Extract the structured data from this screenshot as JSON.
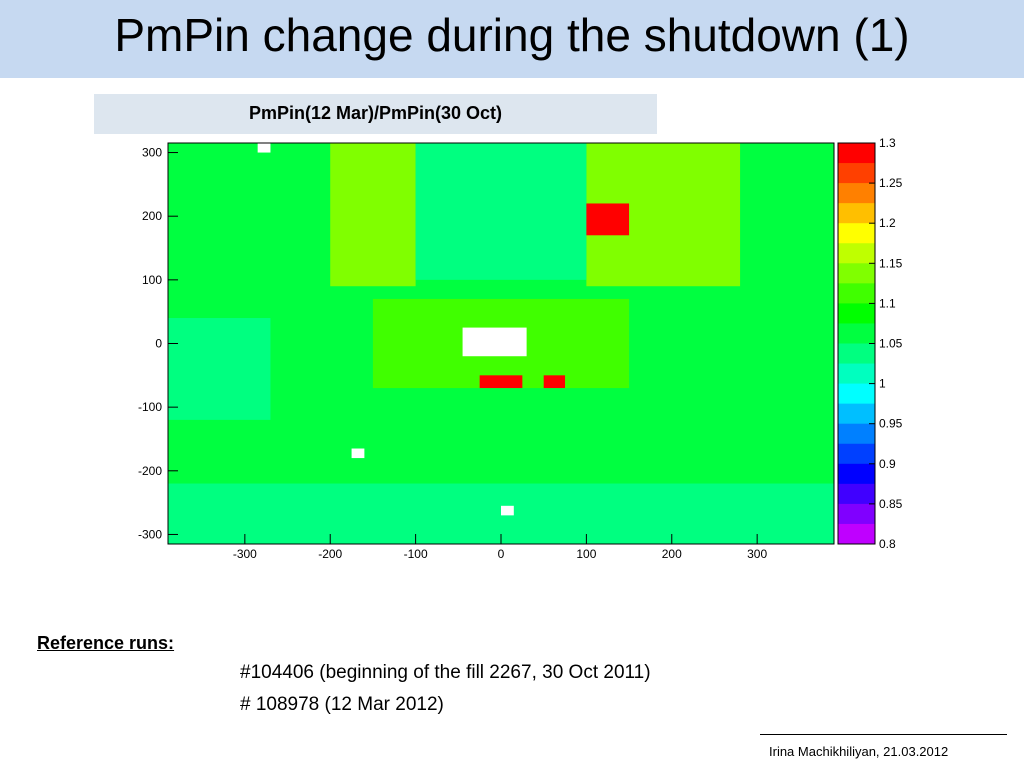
{
  "slide": {
    "title": "PmPin change during the shutdown (1)",
    "author": "Irina Machikhiliyan, 21.03.2012"
  },
  "reference": {
    "title": "Reference runs:",
    "runs": [
      "#104406 (beginning  of the fill 2267, 30 Oct 2011)",
      "# 108978 (12 Mar 2012)"
    ]
  },
  "chart_data": {
    "type": "heatmap",
    "title": "PmPin(12 Mar)/PmPin(30 Oct)",
    "x_ticks": [
      -300,
      -200,
      -100,
      0,
      100,
      200,
      300
    ],
    "y_ticks": [
      300,
      200,
      100,
      0,
      -100,
      -200,
      -300
    ],
    "xlim": [
      -390,
      390
    ],
    "ylim": [
      -315,
      315
    ],
    "zlim": [
      0.8,
      1.3
    ],
    "colorbar_ticks": [
      "1.3",
      "1.25",
      "1.2",
      "1.15",
      "1.1",
      "1.05",
      "1",
      "0.95",
      "0.9",
      "0.85",
      "0.8"
    ],
    "colorbar_colors": [
      "#ff0000",
      "#ff4000",
      "#ff8000",
      "#ffbf00",
      "#ffff00",
      "#bfff00",
      "#80ff00",
      "#40ff00",
      "#00ff00",
      "#00ff40",
      "#00ff80",
      "#00ffbf",
      "#00ffff",
      "#00bfff",
      "#0080ff",
      "#0040ff",
      "#0000ff",
      "#4000ff",
      "#8000ff",
      "#bf00ff"
    ],
    "regions": [
      {
        "x": [
          -390,
          390
        ],
        "y": [
          -315,
          315
        ],
        "value": 1.07
      },
      {
        "x": [
          -390,
          390
        ],
        "y": [
          -315,
          -220
        ],
        "value": 1.03
      },
      {
        "x": [
          -390,
          -270
        ],
        "y": [
          -120,
          40
        ],
        "value": 1.05
      },
      {
        "x": [
          -200,
          -100
        ],
        "y": [
          90,
          315
        ],
        "value": 1.15
      },
      {
        "x": [
          100,
          280
        ],
        "y": [
          90,
          315
        ],
        "value": 1.14
      },
      {
        "x": [
          -100,
          100
        ],
        "y": [
          100,
          315
        ],
        "value": 1.04
      },
      {
        "x": [
          -150,
          150
        ],
        "y": [
          -70,
          70
        ],
        "value": 1.12
      },
      {
        "x": [
          100,
          150
        ],
        "y": [
          170,
          220
        ],
        "value": 1.29
      },
      {
        "x": [
          -25,
          25
        ],
        "y": [
          -70,
          -50
        ],
        "value": 1.29
      },
      {
        "x": [
          50,
          75
        ],
        "y": [
          -70,
          -50
        ],
        "value": 1.29
      },
      {
        "x": [
          -45,
          30
        ],
        "y": [
          -20,
          25
        ],
        "value": null
      },
      {
        "x": [
          -285,
          -270
        ],
        "y": [
          300,
          315
        ],
        "value": null
      },
      {
        "x": [
          -175,
          -160
        ],
        "y": [
          -180,
          -165
        ],
        "value": null
      },
      {
        "x": [
          0,
          15
        ],
        "y": [
          -270,
          -255
        ],
        "value": null
      }
    ]
  }
}
